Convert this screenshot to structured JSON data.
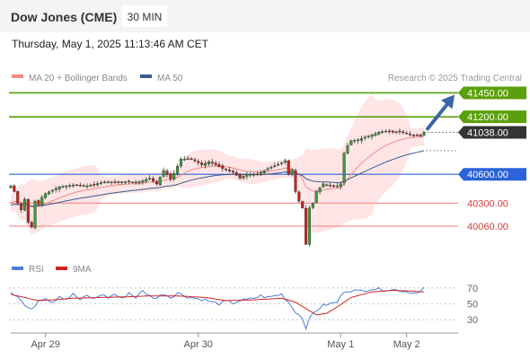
{
  "header": {
    "title": "Dow Jones (CME)",
    "interval": "30 MIN",
    "datetime": "Thursday, May 1, 2025 11:13:46 AM CET"
  },
  "legend": {
    "items": [
      {
        "label": "MA 20 + Bollinger Bands",
        "color": "#f08c84"
      },
      {
        "label": "MA 50",
        "color": "#3a5a8c"
      }
    ],
    "credit": "Research © 2025 Trading Central"
  },
  "colors": {
    "up": "#3a9a3a",
    "down": "#cc2020",
    "resistance": "#5aa00a",
    "support_blue": "#2b63d8",
    "support_red": "#f28a8a",
    "current": "#333333",
    "arrow": "#3a66a8",
    "band": "#ffdcdc",
    "ma20": "#f08c84",
    "ma50": "#3a5a8c",
    "rsi": "#4f7fd6",
    "rsi_ma": "#d42020"
  },
  "chart_data": [
    {
      "type": "candlestick",
      "title": "Dow Jones (CME)",
      "interval": "30 MIN",
      "ylim": [
        39750,
        41520
      ],
      "x_labels": [
        "Apr 29",
        "Apr 30",
        "May 1",
        "May 2"
      ],
      "x_label_index": [
        10,
        54,
        95,
        114
      ],
      "n_bars": 120,
      "levels": [
        {
          "value": 41450,
          "label": "41450.00",
          "kind": "resistance"
        },
        {
          "value": 41200,
          "label": "41200.00",
          "kind": "resistance"
        },
        {
          "value": 41038,
          "label": "41038.00",
          "kind": "current"
        },
        {
          "value": 40600,
          "label": "40600.00",
          "kind": "support_blue"
        },
        {
          "value": 40300,
          "label": "40300.00",
          "kind": "support_red"
        },
        {
          "value": 40060,
          "label": "40060.00",
          "kind": "support_red"
        }
      ],
      "anchors": [
        [
          0,
          40480
        ],
        [
          1,
          40420
        ],
        [
          2,
          40300
        ],
        [
          3,
          40230
        ],
        [
          4,
          40340
        ],
        [
          5,
          40100
        ],
        [
          6,
          40050
        ],
        [
          7,
          40320
        ],
        [
          8,
          40280
        ],
        [
          9,
          40360
        ],
        [
          10,
          40400
        ],
        [
          14,
          40470
        ],
        [
          18,
          40490
        ],
        [
          22,
          40480
        ],
        [
          27,
          40520
        ],
        [
          32,
          40520
        ],
        [
          37,
          40520
        ],
        [
          40,
          40560
        ],
        [
          42,
          40500
        ],
        [
          44,
          40640
        ],
        [
          46,
          40550
        ],
        [
          47,
          40610
        ],
        [
          49,
          40760
        ],
        [
          52,
          40760
        ],
        [
          55,
          40700
        ],
        [
          57,
          40730
        ],
        [
          59,
          40700
        ],
        [
          61,
          40660
        ],
        [
          64,
          40620
        ],
        [
          66,
          40560
        ],
        [
          68,
          40600
        ],
        [
          71,
          40600
        ],
        [
          74,
          40660
        ],
        [
          78,
          40720
        ],
        [
          79,
          40740
        ],
        [
          80,
          40600
        ],
        [
          81,
          40650
        ],
        [
          82,
          40420
        ],
        [
          83,
          40320
        ],
        [
          84,
          40250
        ],
        [
          85,
          39870
        ],
        [
          86,
          40250
        ],
        [
          87,
          40300
        ],
        [
          88,
          40420
        ],
        [
          90,
          40500
        ],
        [
          92,
          40480
        ],
        [
          94,
          40480
        ],
        [
          95,
          40500
        ],
        [
          96,
          40820
        ],
        [
          97,
          40900
        ],
        [
          98,
          40950
        ],
        [
          100,
          40960
        ],
        [
          103,
          41000
        ],
        [
          106,
          41040
        ],
        [
          108,
          41050
        ],
        [
          110,
          41040
        ],
        [
          112,
          41050
        ],
        [
          114,
          41030
        ],
        [
          116,
          41010
        ],
        [
          118,
          41000
        ],
        [
          119,
          41038
        ]
      ],
      "ma20_start": 40280,
      "band_width_start": 160,
      "ma50_start": 40270,
      "projection_arrow": {
        "from_index": 119,
        "to_value": 41450
      }
    },
    {
      "type": "line",
      "title": "RSI",
      "series_labels": [
        "RSI",
        "9MA"
      ],
      "ylim": [
        20,
        80
      ],
      "levels": [
        70,
        50,
        30
      ],
      "rsi_anchors": [
        [
          0,
          65
        ],
        [
          2,
          60
        ],
        [
          4,
          48
        ],
        [
          6,
          42
        ],
        [
          8,
          55
        ],
        [
          10,
          58
        ],
        [
          12,
          52
        ],
        [
          14,
          60
        ],
        [
          16,
          56
        ],
        [
          18,
          62
        ],
        [
          20,
          55
        ],
        [
          22,
          60
        ],
        [
          24,
          56
        ],
        [
          26,
          62
        ],
        [
          28,
          58
        ],
        [
          30,
          62
        ],
        [
          32,
          56
        ],
        [
          34,
          64
        ],
        [
          36,
          58
        ],
        [
          38,
          66
        ],
        [
          40,
          60
        ],
        [
          42,
          57
        ],
        [
          44,
          63
        ],
        [
          46,
          58
        ],
        [
          48,
          64
        ],
        [
          50,
          60
        ],
        [
          52,
          58
        ],
        [
          54,
          56
        ],
        [
          56,
          55
        ],
        [
          58,
          52
        ],
        [
          60,
          50
        ],
        [
          62,
          53
        ],
        [
          64,
          51
        ],
        [
          66,
          54
        ],
        [
          68,
          55
        ],
        [
          70,
          57
        ],
        [
          72,
          60
        ],
        [
          74,
          58
        ],
        [
          76,
          60
        ],
        [
          78,
          62
        ],
        [
          80,
          52
        ],
        [
          82,
          40
        ],
        [
          84,
          32
        ],
        [
          85,
          20
        ],
        [
          86,
          30
        ],
        [
          87,
          38
        ],
        [
          88,
          42
        ],
        [
          90,
          48
        ],
        [
          92,
          50
        ],
        [
          94,
          52
        ],
        [
          96,
          66
        ],
        [
          98,
          67
        ],
        [
          100,
          66
        ],
        [
          104,
          69
        ],
        [
          108,
          68
        ],
        [
          112,
          67
        ],
        [
          116,
          64
        ],
        [
          118,
          66
        ],
        [
          119,
          70
        ]
      ],
      "ma_anchors": [
        [
          0,
          62
        ],
        [
          4,
          58
        ],
        [
          8,
          54
        ],
        [
          12,
          55
        ],
        [
          18,
          57
        ],
        [
          26,
          58
        ],
        [
          34,
          59
        ],
        [
          40,
          60
        ],
        [
          48,
          60
        ],
        [
          56,
          58
        ],
        [
          62,
          54
        ],
        [
          70,
          55
        ],
        [
          78,
          57
        ],
        [
          82,
          52
        ],
        [
          85,
          44
        ],
        [
          88,
          36
        ],
        [
          91,
          38
        ],
        [
          94,
          46
        ],
        [
          98,
          58
        ],
        [
          104,
          65
        ],
        [
          110,
          67
        ],
        [
          116,
          66
        ],
        [
          119,
          65
        ]
      ]
    }
  ],
  "rsi_legend": {
    "items": [
      {
        "label": "RSI",
        "color": "#4f7fd6"
      },
      {
        "label": "9MA",
        "color": "#d42020"
      }
    ]
  }
}
